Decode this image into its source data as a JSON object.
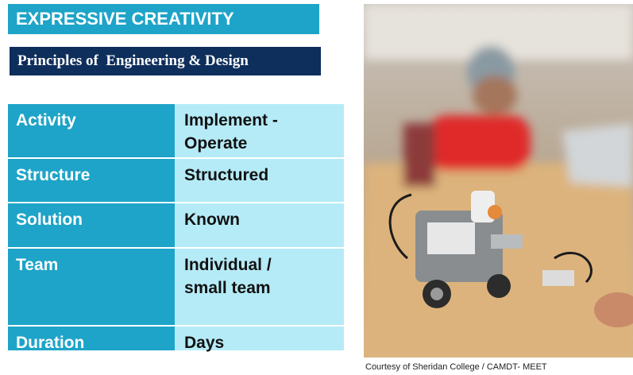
{
  "header": {
    "title": "EXPRESSIVE CREATIVITY",
    "subtitle": "Principles of  Engineering & Design"
  },
  "table": {
    "rows": [
      [
        "Activity",
        "Implement -\nOperate"
      ],
      [
        "Structure",
        "Structured"
      ],
      [
        "Solution",
        "Known"
      ],
      [
        "Team",
        "Individual /\nsmall team"
      ],
      [
        "Duration",
        "Days"
      ]
    ]
  },
  "image": {
    "caption": "Courtesy of Sheridan College / CAMDT- MEET"
  }
}
